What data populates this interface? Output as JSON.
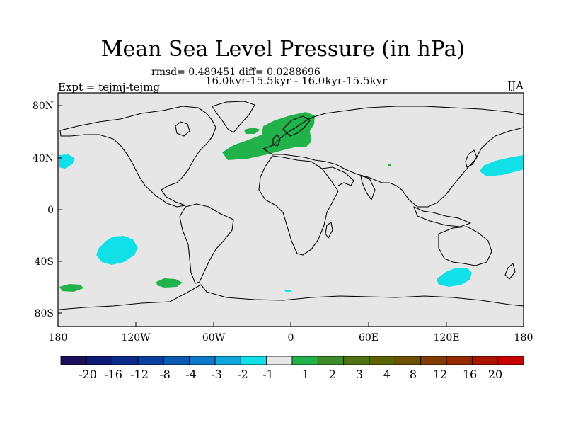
{
  "title": "Mean Sea Level Pressure (in hPa)",
  "stats": "rmsd= 0.489451 diff= 0.0288696",
  "subtitle": "16.0kyr-15.5kyr - 16.0kyr-15.5kyr",
  "experiment": "Expt = tejmj-tejmg",
  "season": "JJA",
  "colors": {
    "background_field": "#e6e6e6",
    "positive_anomaly": "#22b24c",
    "negative_anomaly": "#11e0e8"
  },
  "axes": {
    "x_ticks": [
      "180",
      "120W",
      "60W",
      "0",
      "60E",
      "120E",
      "180"
    ],
    "y_ticks": [
      "80N",
      "40N",
      "0",
      "40S",
      "80S"
    ]
  },
  "colorbar": {
    "colors": [
      "#1c0d5a",
      "#0e1978",
      "#0a2a8c",
      "#0a41a0",
      "#0b5bb4",
      "#0c7ac8",
      "#11a6dc",
      "#11e0e8",
      "#e6e6e6",
      "#22b24c",
      "#3c8c28",
      "#4e7414",
      "#5c6400",
      "#6e5000",
      "#823c00",
      "#962800",
      "#aa1400",
      "#c80000"
    ],
    "labels": [
      "-20",
      "-16",
      "-12",
      "-8",
      "-4",
      "-3",
      "-2",
      "-1",
      "1",
      "2",
      "3",
      "4",
      "8",
      "12",
      "16",
      "20"
    ]
  },
  "anomaly_regions": [
    {
      "name": "North Atlantic / Scandinavia",
      "sign": "positive"
    },
    {
      "name": "Greenland Sea",
      "sign": "positive"
    },
    {
      "name": "Southeast Pacific",
      "sign": "positive"
    },
    {
      "name": "South Pacific west",
      "sign": "positive"
    },
    {
      "name": "North Pacific east",
      "sign": "negative"
    },
    {
      "name": "North Pacific west",
      "sign": "negative"
    },
    {
      "name": "South Pacific",
      "sign": "negative"
    },
    {
      "name": "Southern Indian Ocean",
      "sign": "negative"
    }
  ]
}
